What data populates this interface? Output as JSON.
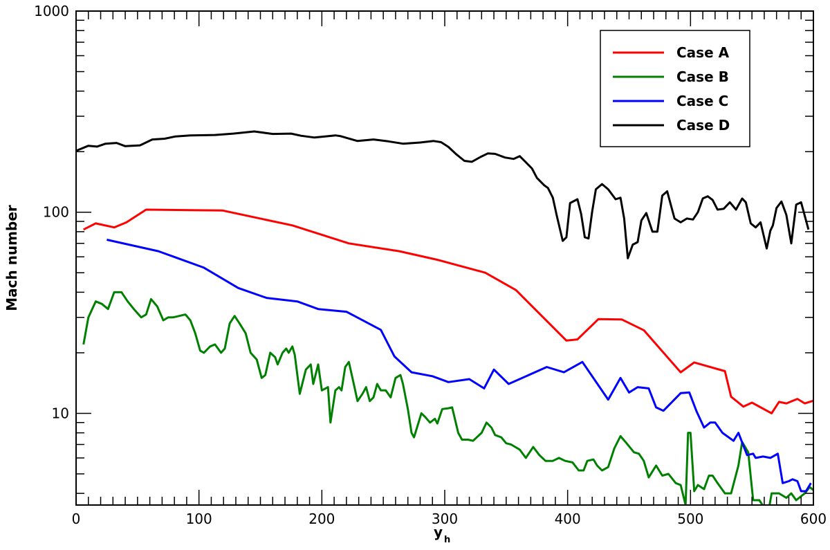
{
  "chart_data": {
    "type": "line",
    "xlabel": "y",
    "xlabel_sub": "h",
    "ylabel": "Mach number",
    "xlim": [
      0,
      600
    ],
    "ylim": [
      3.5,
      1000
    ],
    "yscale": "log",
    "xticks": [
      0,
      100,
      200,
      300,
      400,
      500,
      600
    ],
    "xticklabels": [
      "0",
      "100",
      "200",
      "300",
      "400",
      "500",
      "600"
    ],
    "yticks": [
      10,
      100,
      1000
    ],
    "yticklabels": [
      "10",
      "100",
      "1000"
    ],
    "grid": false,
    "legend_position": "top-right",
    "series": [
      {
        "name": "Case A",
        "color": "#ff0000",
        "points": [
          [
            6,
            82
          ],
          [
            16,
            88
          ],
          [
            31,
            84
          ],
          [
            41,
            89
          ],
          [
            57,
            103
          ],
          [
            119,
            102
          ],
          [
            176,
            86
          ],
          [
            222,
            70
          ],
          [
            263,
            64
          ],
          [
            294,
            58
          ],
          [
            333,
            50
          ],
          [
            358,
            41
          ],
          [
            399,
            23
          ],
          [
            408,
            23.3
          ],
          [
            425,
            29.4
          ],
          [
            444,
            29.3
          ],
          [
            462,
            25.9
          ],
          [
            492,
            16
          ],
          [
            503,
            17.9
          ],
          [
            528,
            16.2
          ],
          [
            533,
            12.1
          ],
          [
            543,
            10.8
          ],
          [
            550,
            11.3
          ],
          [
            566,
            10
          ],
          [
            572,
            11.4
          ],
          [
            578,
            11.2
          ],
          [
            587,
            11.8
          ],
          [
            593,
            11.2
          ],
          [
            601,
            11.6
          ],
          [
            608,
            15.5
          ]
        ]
      },
      {
        "name": "Case B",
        "color": "#008000",
        "points": [
          [
            6,
            22
          ],
          [
            10,
            30
          ],
          [
            16,
            36
          ],
          [
            21,
            35
          ],
          [
            26,
            33
          ],
          [
            31,
            40
          ],
          [
            37,
            40
          ],
          [
            42,
            36
          ],
          [
            47,
            33
          ],
          [
            53,
            30
          ],
          [
            57,
            31
          ],
          [
            61,
            37
          ],
          [
            66,
            34
          ],
          [
            71,
            29
          ],
          [
            75,
            30
          ],
          [
            79,
            30
          ],
          [
            84,
            30.5
          ],
          [
            89,
            31
          ],
          [
            93,
            29
          ],
          [
            97,
            25
          ],
          [
            101,
            20.5
          ],
          [
            104,
            20
          ],
          [
            109,
            21.5
          ],
          [
            113,
            22
          ],
          [
            118,
            20
          ],
          [
            121,
            21
          ],
          [
            125,
            28
          ],
          [
            129,
            30.5
          ],
          [
            133,
            28
          ],
          [
            138,
            25
          ],
          [
            142,
            20
          ],
          [
            147,
            18.5
          ],
          [
            151,
            15
          ],
          [
            154,
            15.5
          ],
          [
            158,
            20
          ],
          [
            162,
            19
          ],
          [
            164,
            17.5
          ],
          [
            168,
            20
          ],
          [
            171,
            21
          ],
          [
            173,
            20
          ],
          [
            176,
            21.5
          ],
          [
            178,
            19.5
          ],
          [
            182,
            12.5
          ],
          [
            187,
            16.5
          ],
          [
            191,
            17.5
          ],
          [
            193,
            14
          ],
          [
            197,
            17.5
          ],
          [
            200,
            13
          ],
          [
            205,
            13.5
          ],
          [
            207,
            9
          ],
          [
            211,
            13
          ],
          [
            214,
            13.5
          ],
          [
            216,
            13
          ],
          [
            219,
            17
          ],
          [
            222,
            18
          ],
          [
            226,
            14
          ],
          [
            229,
            11.5
          ],
          [
            233,
            12.5
          ],
          [
            236,
            13.5
          ],
          [
            239,
            11.5
          ],
          [
            242,
            12
          ],
          [
            245,
            14
          ],
          [
            248,
            13
          ],
          [
            252,
            13
          ],
          [
            256,
            12
          ],
          [
            260,
            15
          ],
          [
            264,
            15.5
          ],
          [
            266,
            14
          ],
          [
            270,
            10.5
          ],
          [
            273,
            8
          ],
          [
            275,
            7.6
          ],
          [
            281,
            10
          ],
          [
            284,
            9.6
          ],
          [
            288,
            9
          ],
          [
            292,
            9.4
          ],
          [
            294,
            8.9
          ],
          [
            298,
            10.5
          ],
          [
            303,
            10.6
          ],
          [
            306,
            10.7
          ],
          [
            311,
            8
          ],
          [
            314,
            7.4
          ],
          [
            319,
            7.4
          ],
          [
            323,
            7.3
          ],
          [
            330,
            8
          ],
          [
            334,
            9
          ],
          [
            338,
            8.5
          ],
          [
            341,
            7.8
          ],
          [
            346,
            7.6
          ],
          [
            350,
            7.1
          ],
          [
            354,
            7
          ],
          [
            361,
            6.6
          ],
          [
            366,
            6
          ],
          [
            372,
            6.8
          ],
          [
            377,
            6.2
          ],
          [
            382,
            5.8
          ],
          [
            388,
            5.8
          ],
          [
            393,
            6
          ],
          [
            398,
            5.8
          ],
          [
            404,
            5.7
          ],
          [
            409,
            5.2
          ],
          [
            413,
            5.2
          ],
          [
            416,
            5.8
          ],
          [
            421,
            5.9
          ],
          [
            424,
            5.5
          ],
          [
            428,
            5.2
          ],
          [
            433,
            5.4
          ],
          [
            438,
            6.7
          ],
          [
            443,
            7.7
          ],
          [
            448,
            7.1
          ],
          [
            454,
            6.4
          ],
          [
            458,
            6.3
          ],
          [
            462,
            5.8
          ],
          [
            466,
            4.8
          ],
          [
            472,
            5.5
          ],
          [
            477,
            4.9
          ],
          [
            482,
            5
          ],
          [
            488,
            4.5
          ],
          [
            492,
            4.4
          ],
          [
            496,
            3.5
          ],
          [
            498,
            8
          ],
          [
            500,
            8
          ],
          [
            503,
            4.1
          ],
          [
            506,
            4.4
          ],
          [
            511,
            4.2
          ],
          [
            515,
            4.9
          ],
          [
            518,
            4.9
          ],
          [
            522,
            4.5
          ],
          [
            528,
            4
          ],
          [
            533,
            4
          ],
          [
            539,
            5.5
          ],
          [
            542,
            7.2
          ],
          [
            547,
            6.4
          ],
          [
            551,
            3.7
          ],
          [
            556,
            3.7
          ],
          [
            560,
            3.4
          ],
          [
            564,
            3.4
          ],
          [
            566,
            4
          ],
          [
            572,
            4
          ],
          [
            578,
            3.8
          ],
          [
            582,
            4
          ],
          [
            586,
            3.7
          ],
          [
            593,
            4
          ],
          [
            597,
            4.3
          ],
          [
            601,
            4.1
          ],
          [
            605,
            4.5
          ],
          [
            610,
            4
          ]
        ]
      },
      {
        "name": "Case C",
        "color": "#0000ff",
        "points": [
          [
            25,
            73
          ],
          [
            67,
            64
          ],
          [
            104,
            53
          ],
          [
            132,
            42
          ],
          [
            155,
            37.5
          ],
          [
            180,
            36
          ],
          [
            197,
            33
          ],
          [
            220,
            32
          ],
          [
            248,
            26
          ],
          [
            259,
            19.2
          ],
          [
            273,
            16
          ],
          [
            290,
            15.3
          ],
          [
            303,
            14.3
          ],
          [
            320,
            14.8
          ],
          [
            332,
            13.3
          ],
          [
            340,
            16.5
          ],
          [
            352,
            14
          ],
          [
            383,
            17
          ],
          [
            397,
            16
          ],
          [
            412,
            18
          ],
          [
            433,
            11.7
          ],
          [
            443,
            15
          ],
          [
            450,
            12.7
          ],
          [
            457,
            13.5
          ],
          [
            466,
            13.3
          ],
          [
            472,
            10.7
          ],
          [
            478,
            10.3
          ],
          [
            492,
            12.6
          ],
          [
            499,
            12.7
          ],
          [
            505,
            10.2
          ],
          [
            511,
            8.5
          ],
          [
            516,
            9
          ],
          [
            520,
            9
          ],
          [
            526,
            8
          ],
          [
            535,
            7.3
          ],
          [
            539,
            8
          ],
          [
            546,
            6.2
          ],
          [
            551,
            6.3
          ],
          [
            553,
            6
          ],
          [
            559,
            6.1
          ],
          [
            565,
            6
          ],
          [
            571,
            6.3
          ],
          [
            575,
            4.5
          ],
          [
            580,
            4.6
          ],
          [
            583,
            4.7
          ],
          [
            587,
            4.6
          ],
          [
            590,
            4.1
          ],
          [
            594,
            4.1
          ],
          [
            598,
            4.5
          ]
        ]
      },
      {
        "name": "Case D",
        "color": "#000000",
        "points": [
          [
            0,
            202
          ],
          [
            10,
            214
          ],
          [
            17,
            212
          ],
          [
            24,
            219
          ],
          [
            33,
            221
          ],
          [
            40,
            213
          ],
          [
            52,
            215
          ],
          [
            62,
            230
          ],
          [
            72,
            232
          ],
          [
            81,
            238
          ],
          [
            93,
            241
          ],
          [
            113,
            242
          ],
          [
            128,
            246
          ],
          [
            145,
            252
          ],
          [
            160,
            245
          ],
          [
            175,
            246
          ],
          [
            183,
            240
          ],
          [
            194,
            235
          ],
          [
            211,
            241
          ],
          [
            215,
            239
          ],
          [
            229,
            226
          ],
          [
            242,
            230
          ],
          [
            254,
            225
          ],
          [
            266,
            219
          ],
          [
            280,
            222
          ],
          [
            291,
            226
          ],
          [
            297,
            223
          ],
          [
            303,
            211
          ],
          [
            309,
            195
          ],
          [
            316,
            180
          ],
          [
            322,
            178
          ],
          [
            329,
            188
          ],
          [
            335,
            196
          ],
          [
            341,
            195
          ],
          [
            349,
            187
          ],
          [
            356,
            184
          ],
          [
            361,
            190
          ],
          [
            366,
            177
          ],
          [
            371,
            165
          ],
          [
            375,
            148
          ],
          [
            381,
            136
          ],
          [
            384,
            132
          ],
          [
            388,
            118
          ],
          [
            391,
            97
          ],
          [
            396,
            72
          ],
          [
            399,
            75
          ],
          [
            402,
            111
          ],
          [
            408,
            116
          ],
          [
            411,
            98
          ],
          [
            414,
            75
          ],
          [
            417,
            74
          ],
          [
            420,
            101
          ],
          [
            423,
            130
          ],
          [
            428,
            138
          ],
          [
            433,
            130
          ],
          [
            439,
            116
          ],
          [
            443,
            118
          ],
          [
            446,
            93
          ],
          [
            449,
            59
          ],
          [
            453,
            69
          ],
          [
            457,
            71
          ],
          [
            460,
            91
          ],
          [
            464,
            99
          ],
          [
            469,
            80
          ],
          [
            473,
            80
          ],
          [
            477,
            121
          ],
          [
            481,
            127
          ],
          [
            487,
            93
          ],
          [
            492,
            89
          ],
          [
            497,
            93
          ],
          [
            502,
            92
          ],
          [
            506,
            100
          ],
          [
            510,
            117
          ],
          [
            514,
            120
          ],
          [
            518,
            115
          ],
          [
            522,
            103
          ],
          [
            527,
            104
          ],
          [
            532,
            112
          ],
          [
            537,
            103
          ],
          [
            542,
            117
          ],
          [
            545,
            112
          ],
          [
            549,
            88
          ],
          [
            553,
            84
          ],
          [
            557,
            89
          ],
          [
            562,
            66
          ],
          [
            565,
            81
          ],
          [
            567,
            86
          ],
          [
            570,
            105
          ],
          [
            574,
            113
          ],
          [
            578,
            97
          ],
          [
            582,
            70
          ],
          [
            586,
            109
          ],
          [
            590,
            112
          ],
          [
            596,
            82
          ]
        ]
      }
    ]
  }
}
